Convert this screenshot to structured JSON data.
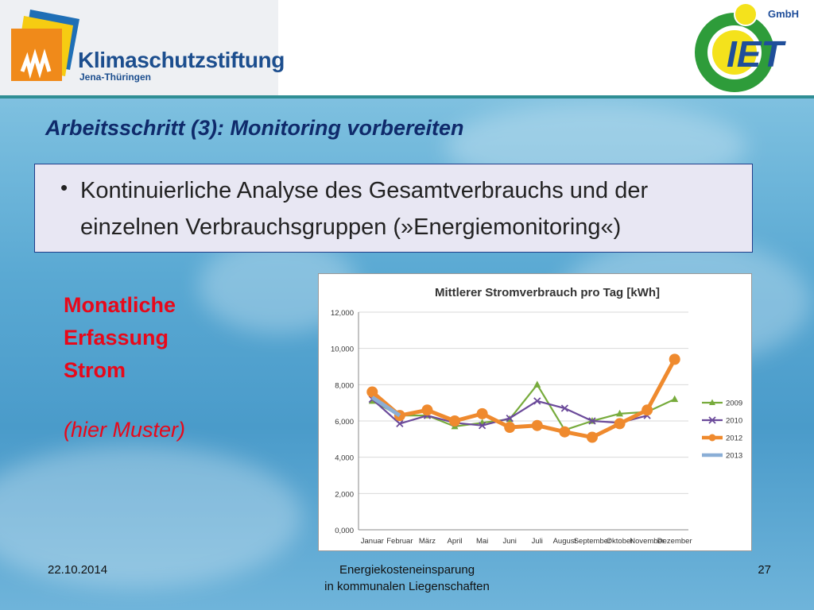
{
  "header": {
    "logo_title": "Klimaschutzstiftung",
    "logo_subtitle": "Jena-Thüringen",
    "right_logo_letters": "IET",
    "right_logo_tag": "GmbH"
  },
  "slide": {
    "title": "Arbeitsschritt (3): Monitoring vorbereiten",
    "bullet_line1": "Kontinuierliche Analyse des Gesamtverbrauchs und der",
    "bullet_line2": "einzelnen Verbrauchsgruppen (»Energiemonitoring«)",
    "side_line1": "Monatliche",
    "side_line2": "Erfassung",
    "side_line3": "Strom",
    "side_note": "(hier Muster)"
  },
  "footer": {
    "date": "22.10.2014",
    "center_line1": "Energiekosteneinsparung",
    "center_line2": "in kommunalen Liegenschaften",
    "page": "27"
  },
  "chart_data": {
    "type": "line",
    "title": "Mittlerer Stromverbrauch pro Tag [kWh]",
    "xlabel": "",
    "ylabel": "",
    "categories": [
      "Januar",
      "Februar",
      "März",
      "April",
      "Mai",
      "Juni",
      "Juli",
      "August",
      "September",
      "Oktober",
      "November",
      "Dezember"
    ],
    "ylim": [
      0,
      12000
    ],
    "yticks": [
      "0,000",
      "2,000",
      "4,000",
      "6,000",
      "8,000",
      "10,000",
      "12,000"
    ],
    "ytick_values": [
      0,
      2000,
      4000,
      6000,
      8000,
      10000,
      12000
    ],
    "legend_position": "right",
    "series": [
      {
        "name": "2009",
        "color": "#77ab3c",
        "marker": "triangle",
        "values": [
          7100,
          6300,
          6300,
          5700,
          5900,
          6100,
          8000,
          5500,
          6000,
          6400,
          6500,
          7200
        ]
      },
      {
        "name": "2010",
        "color": "#6b4a9a",
        "marker": "x",
        "values": [
          7200,
          5850,
          6300,
          5900,
          5750,
          6150,
          7100,
          6700,
          6000,
          5900,
          6300,
          null
        ]
      },
      {
        "name": "2012",
        "color": "#ef8a2e",
        "marker": "circle",
        "values": [
          7600,
          6300,
          6600,
          6000,
          6400,
          5650,
          5750,
          5400,
          5100,
          5850,
          6600,
          9400
        ]
      },
      {
        "name": "2013",
        "color": "#8aaed6",
        "marker": "none",
        "values": [
          7300,
          6300,
          null,
          null,
          null,
          null,
          null,
          null,
          null,
          null,
          null,
          null
        ]
      }
    ]
  }
}
